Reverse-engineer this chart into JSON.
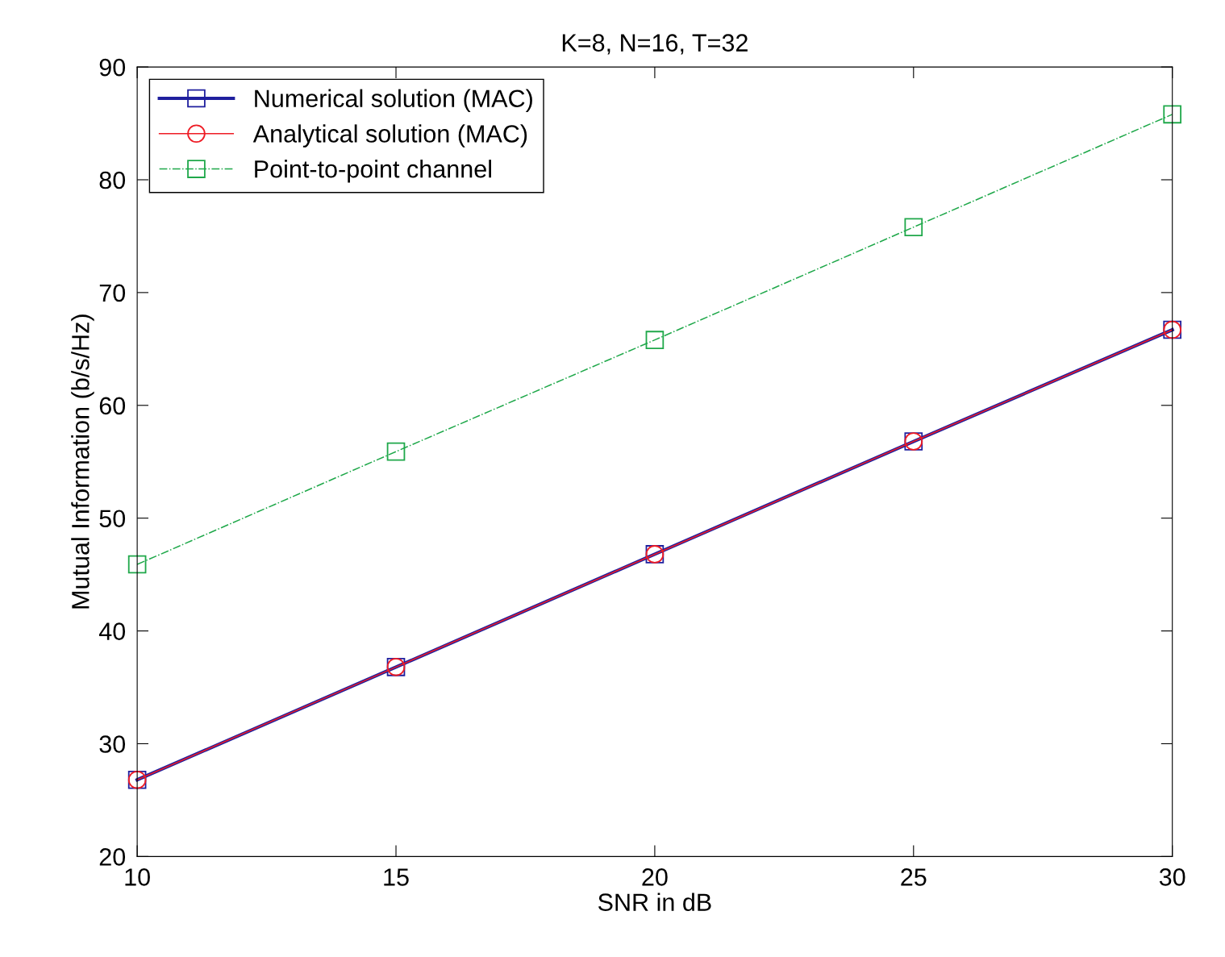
{
  "chart_data": {
    "type": "line",
    "title": "K=8, N=16, T=32",
    "xlabel": "SNR in dB",
    "ylabel": "Mutual Information (b/s/Hz)",
    "x": [
      10,
      15,
      20,
      25,
      30
    ],
    "series": [
      {
        "name": "Numerical solution (MAC)",
        "color": "#1f1f9e",
        "values": [
          26.8,
          36.8,
          46.8,
          56.8,
          66.7
        ],
        "marker": "square",
        "line_style": "solid"
      },
      {
        "name": "Analytical solution (MAC)",
        "color": "#ee1c25",
        "values": [
          26.8,
          36.8,
          46.8,
          56.8,
          66.7
        ],
        "marker": "circle",
        "line_style": "solid"
      },
      {
        "name": "Point-to-point channel",
        "color": "#1fa84a",
        "values": [
          45.9,
          55.9,
          65.8,
          75.8,
          85.8
        ],
        "marker": "square",
        "line_style": "dashdot"
      }
    ],
    "xlim": [
      10,
      30
    ],
    "xticks": [
      10,
      15,
      20,
      25,
      30
    ],
    "ylim": [
      20,
      90
    ],
    "yticks": [
      20,
      30,
      40,
      50,
      60,
      70,
      80,
      90
    ],
    "grid": false,
    "legend": "top left"
  }
}
